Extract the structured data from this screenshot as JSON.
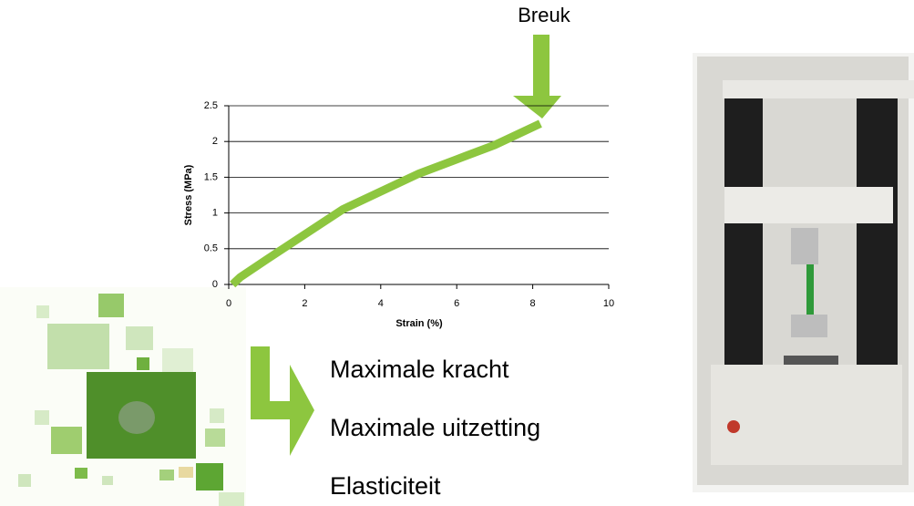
{
  "chart_data": {
    "type": "line",
    "annotation": "Breuk",
    "x_label": "Strain (%)",
    "y_label": "Stress (MPa)",
    "series": [
      {
        "color": "#8dc63f",
        "x": [
          0.1,
          0.3,
          1,
          2,
          3,
          4,
          5,
          6,
          7,
          8.2
        ],
        "values": [
          0,
          0.1,
          0.35,
          0.7,
          1.05,
          1.3,
          1.55,
          1.75,
          1.95,
          2.25
        ]
      }
    ],
    "xlim": [
      0,
      10
    ],
    "xticks": [
      0,
      2,
      4,
      6,
      8,
      10
    ],
    "ylim": [
      0,
      2.5
    ],
    "yticks": [
      0,
      0.5,
      1,
      1.5,
      2,
      2.5
    ],
    "grid": true
  },
  "bullets": [
    "Maximale kracht",
    "Maximale uitzetting",
    "Elasticiteit"
  ]
}
